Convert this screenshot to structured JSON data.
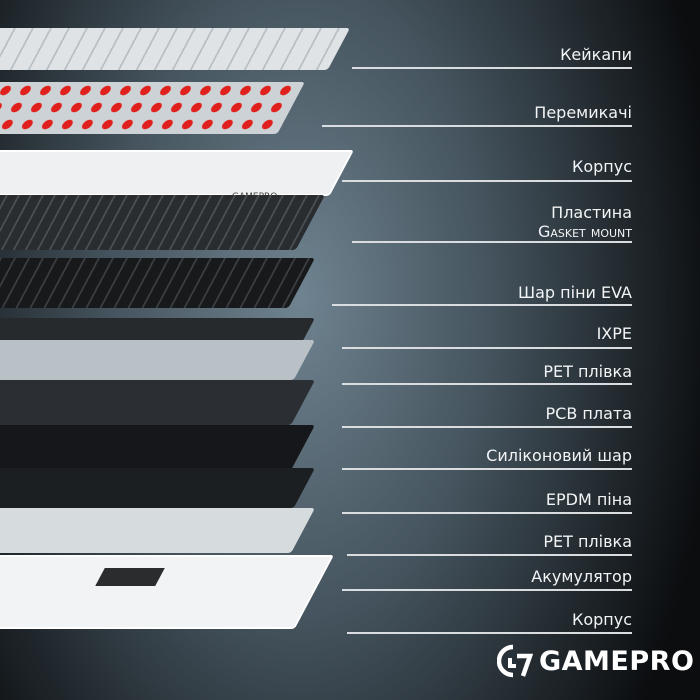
{
  "layers": [
    {
      "label": "Кейкапи"
    },
    {
      "label": "Перемикачі"
    },
    {
      "label": "Корпус"
    },
    {
      "label": "Пластина",
      "label2": "Gasket mount"
    },
    {
      "label": "Шар піни EVA"
    },
    {
      "label": "IXPE"
    },
    {
      "label": "PET плівка"
    },
    {
      "label": "PCB плата"
    },
    {
      "label": "Силіконовий шар"
    },
    {
      "label": "EPDM піна"
    },
    {
      "label": "PET плівка"
    },
    {
      "label": "Акумулятор"
    },
    {
      "label": "Корпус"
    }
  ],
  "case_print": "GAMEPRO",
  "brand": {
    "name": "GAMEPRO"
  },
  "colors": {
    "switch_red": "#e0201c",
    "case_white": "#eef0f2",
    "dark_layer": "#1e2124"
  }
}
